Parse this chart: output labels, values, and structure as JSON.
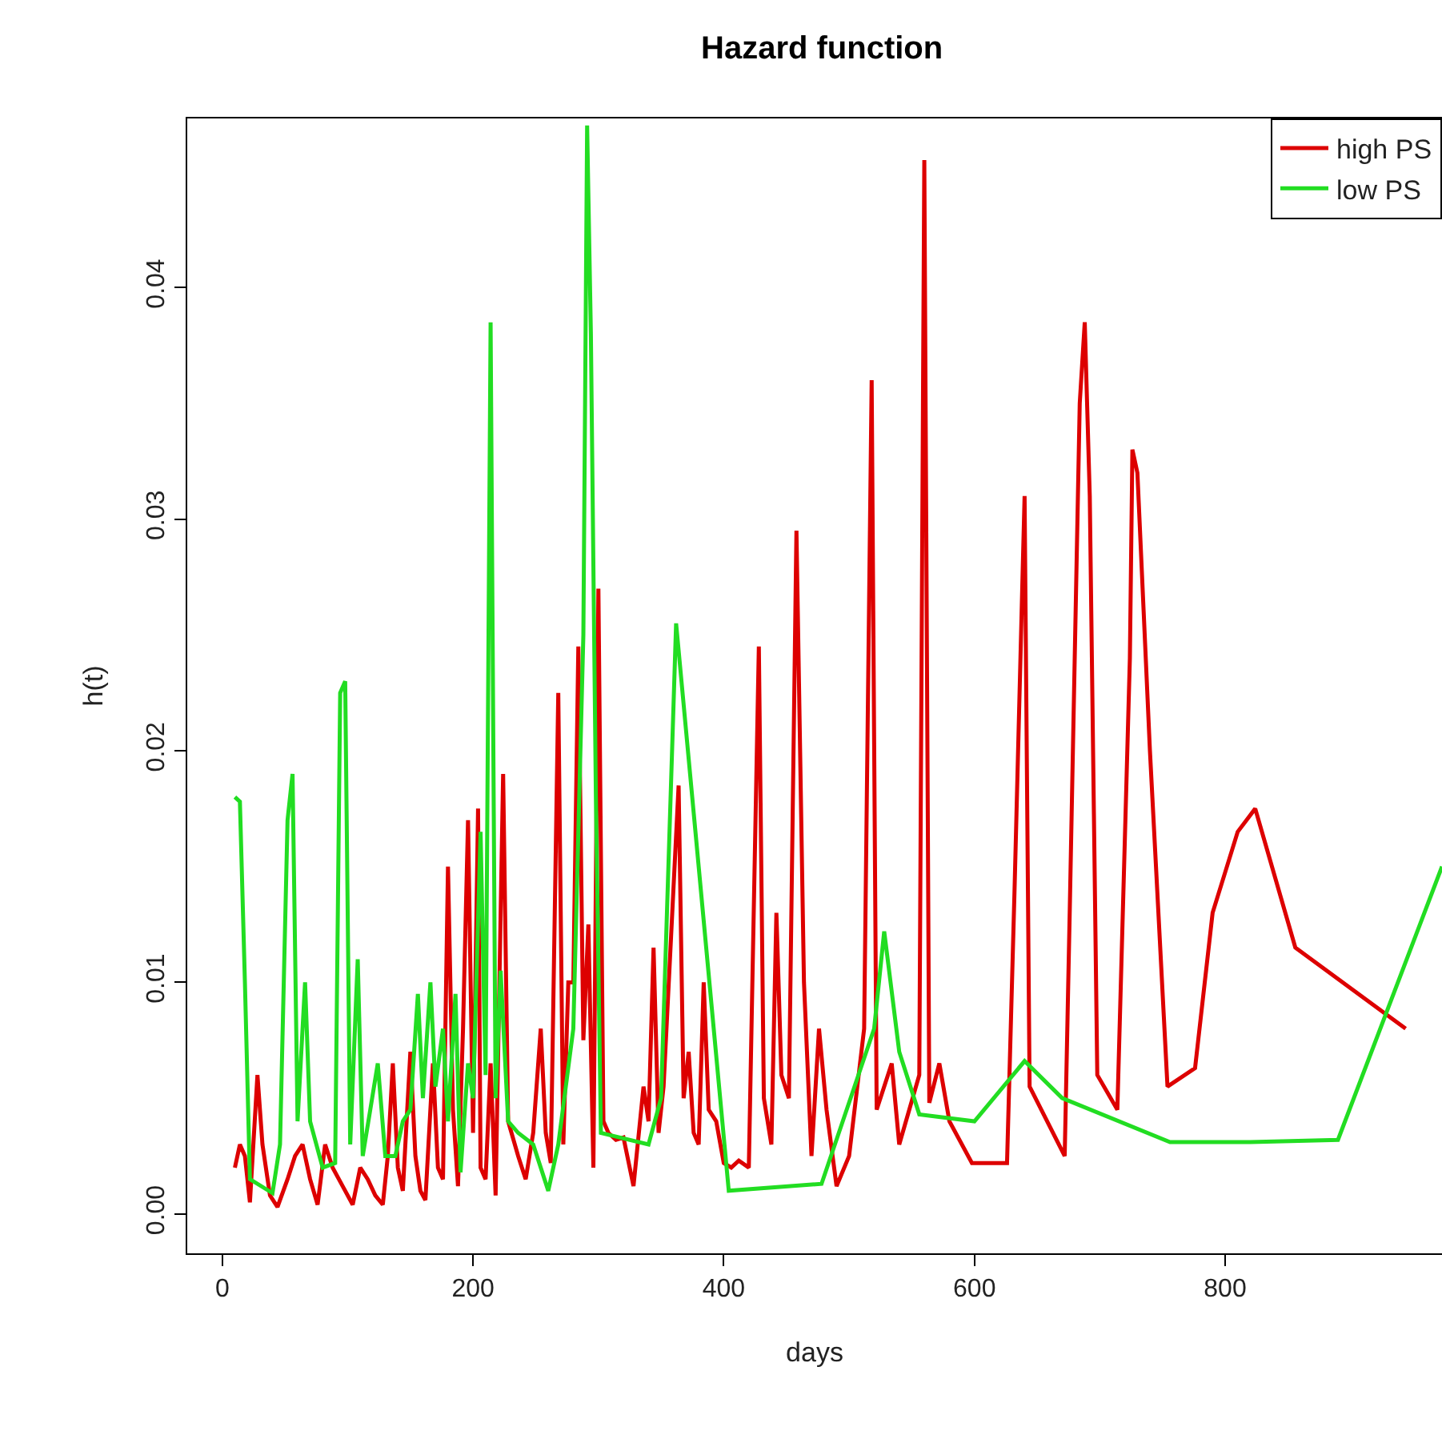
{
  "chart_data": {
    "type": "line",
    "title": "Hazard function",
    "xlabel": "days",
    "ylabel": "h(t)",
    "xlim": [
      -28,
      973
    ],
    "ylim": [
      -0.0017,
      0.0473
    ],
    "xticks": [
      0,
      200,
      400,
      600,
      800
    ],
    "yticks": [
      {
        "value": 0,
        "label": "0.00"
      },
      {
        "value": 0.01,
        "label": "0.01"
      },
      {
        "value": 0.02,
        "label": "0.02"
      },
      {
        "value": 0.03,
        "label": "0.03"
      },
      {
        "value": 0.04,
        "label": "0.04"
      }
    ],
    "legend": "top right",
    "marker": "none",
    "line_style": "solid",
    "series": [
      {
        "name": "high PS",
        "color": "#dd0000",
        "x": [
          10,
          14,
          18,
          22,
          28,
          32,
          38,
          44,
          52,
          58,
          64,
          70,
          76,
          82,
          88,
          96,
          104,
          110,
          116,
          122,
          128,
          132,
          136,
          140,
          144,
          150,
          154,
          158,
          162,
          168,
          172,
          176,
          180,
          184,
          188,
          192,
          196,
          200,
          204,
          206,
          210,
          214,
          218,
          224,
          228,
          236,
          242,
          248,
          254,
          258,
          262,
          268,
          272,
          276,
          280,
          284,
          288,
          292,
          296,
          300,
          304,
          308,
          314,
          320,
          328,
          336,
          340,
          344,
          348,
          352,
          358,
          364,
          368,
          372,
          376,
          380,
          384,
          388,
          394,
          400,
          406,
          412,
          420,
          428,
          432,
          438,
          442,
          446,
          452,
          458,
          464,
          470,
          476,
          482,
          490,
          500,
          512,
          518,
          522,
          534,
          540,
          556,
          560,
          564,
          572,
          580,
          598,
          626,
          632,
          640,
          644,
          672,
          676,
          684,
          688,
          692,
          698,
          714,
          724,
          726,
          730,
          740,
          754,
          776,
          790,
          810,
          824,
          856,
          944
        ],
        "values": [
          0.002,
          0.003,
          0.0025,
          0.0005,
          0.006,
          0.003,
          0.0008,
          0.0003,
          0.0015,
          0.0025,
          0.003,
          0.0015,
          0.0004,
          0.003,
          0.002,
          0.0012,
          0.0004,
          0.002,
          0.0015,
          0.0008,
          0.0004,
          0.0025,
          0.0065,
          0.002,
          0.001,
          0.007,
          0.0025,
          0.001,
          0.0006,
          0.0065,
          0.002,
          0.0015,
          0.015,
          0.0045,
          0.0012,
          0.008,
          0.017,
          0.0035,
          0.0175,
          0.002,
          0.0015,
          0.0065,
          0.0008,
          0.019,
          0.004,
          0.0025,
          0.0015,
          0.0035,
          0.008,
          0.0035,
          0.0022,
          0.0225,
          0.003,
          0.01,
          0.01,
          0.0245,
          0.0075,
          0.0125,
          0.002,
          0.027,
          0.004,
          0.0035,
          0.0032,
          0.0033,
          0.0012,
          0.0055,
          0.004,
          0.0115,
          0.0035,
          0.0055,
          0.012,
          0.0185,
          0.005,
          0.007,
          0.0035,
          0.003,
          0.01,
          0.0045,
          0.004,
          0.0022,
          0.002,
          0.0023,
          0.002,
          0.0245,
          0.005,
          0.003,
          0.013,
          0.006,
          0.005,
          0.0295,
          0.01,
          0.0025,
          0.008,
          0.0045,
          0.0012,
          0.0025,
          0.008,
          0.036,
          0.0045,
          0.0065,
          0.003,
          0.006,
          0.0455,
          0.0048,
          0.0065,
          0.004,
          0.0022,
          0.0022,
          0.014,
          0.031,
          0.0055,
          0.0025,
          0.013,
          0.035,
          0.0385,
          0.031,
          0.006,
          0.0045,
          0.024,
          0.033,
          0.032,
          0.02,
          0.0055,
          0.0063,
          0.013,
          0.0165,
          0.0175,
          0.0115,
          0.008
        ]
      },
      {
        "name": "low PS",
        "color": "#22dd22",
        "x": [
          10,
          14,
          18,
          22,
          40,
          46,
          52,
          56,
          60,
          66,
          70,
          80,
          90,
          94,
          98,
          102,
          108,
          112,
          118,
          124,
          130,
          138,
          144,
          150,
          156,
          160,
          166,
          170,
          176,
          180,
          186,
          190,
          196,
          200,
          206,
          210,
          214,
          218,
          222,
          228,
          236,
          248,
          260,
          268,
          280,
          288,
          291,
          294,
          298,
          302,
          340,
          350,
          362,
          404,
          478,
          520,
          528,
          540,
          556,
          600,
          640,
          670,
          756,
          820,
          890,
          973
        ],
        "values": [
          0.018,
          0.0178,
          0.01,
          0.0015,
          0.0009,
          0.003,
          0.017,
          0.019,
          0.004,
          0.01,
          0.004,
          0.002,
          0.0022,
          0.0225,
          0.023,
          0.003,
          0.011,
          0.0025,
          0.0045,
          0.0065,
          0.0025,
          0.0025,
          0.004,
          0.0045,
          0.0095,
          0.005,
          0.01,
          0.0055,
          0.008,
          0.004,
          0.0095,
          0.0018,
          0.0065,
          0.005,
          0.0165,
          0.006,
          0.0385,
          0.005,
          0.0105,
          0.004,
          0.0035,
          0.003,
          0.001,
          0.003,
          0.008,
          0.025,
          0.047,
          0.038,
          0.018,
          0.0035,
          0.003,
          0.005,
          0.0255,
          0.001,
          0.0013,
          0.008,
          0.0122,
          0.007,
          0.0043,
          0.004,
          0.0066,
          0.005,
          0.0031,
          0.0031,
          0.0032,
          0.015
        ]
      }
    ]
  }
}
